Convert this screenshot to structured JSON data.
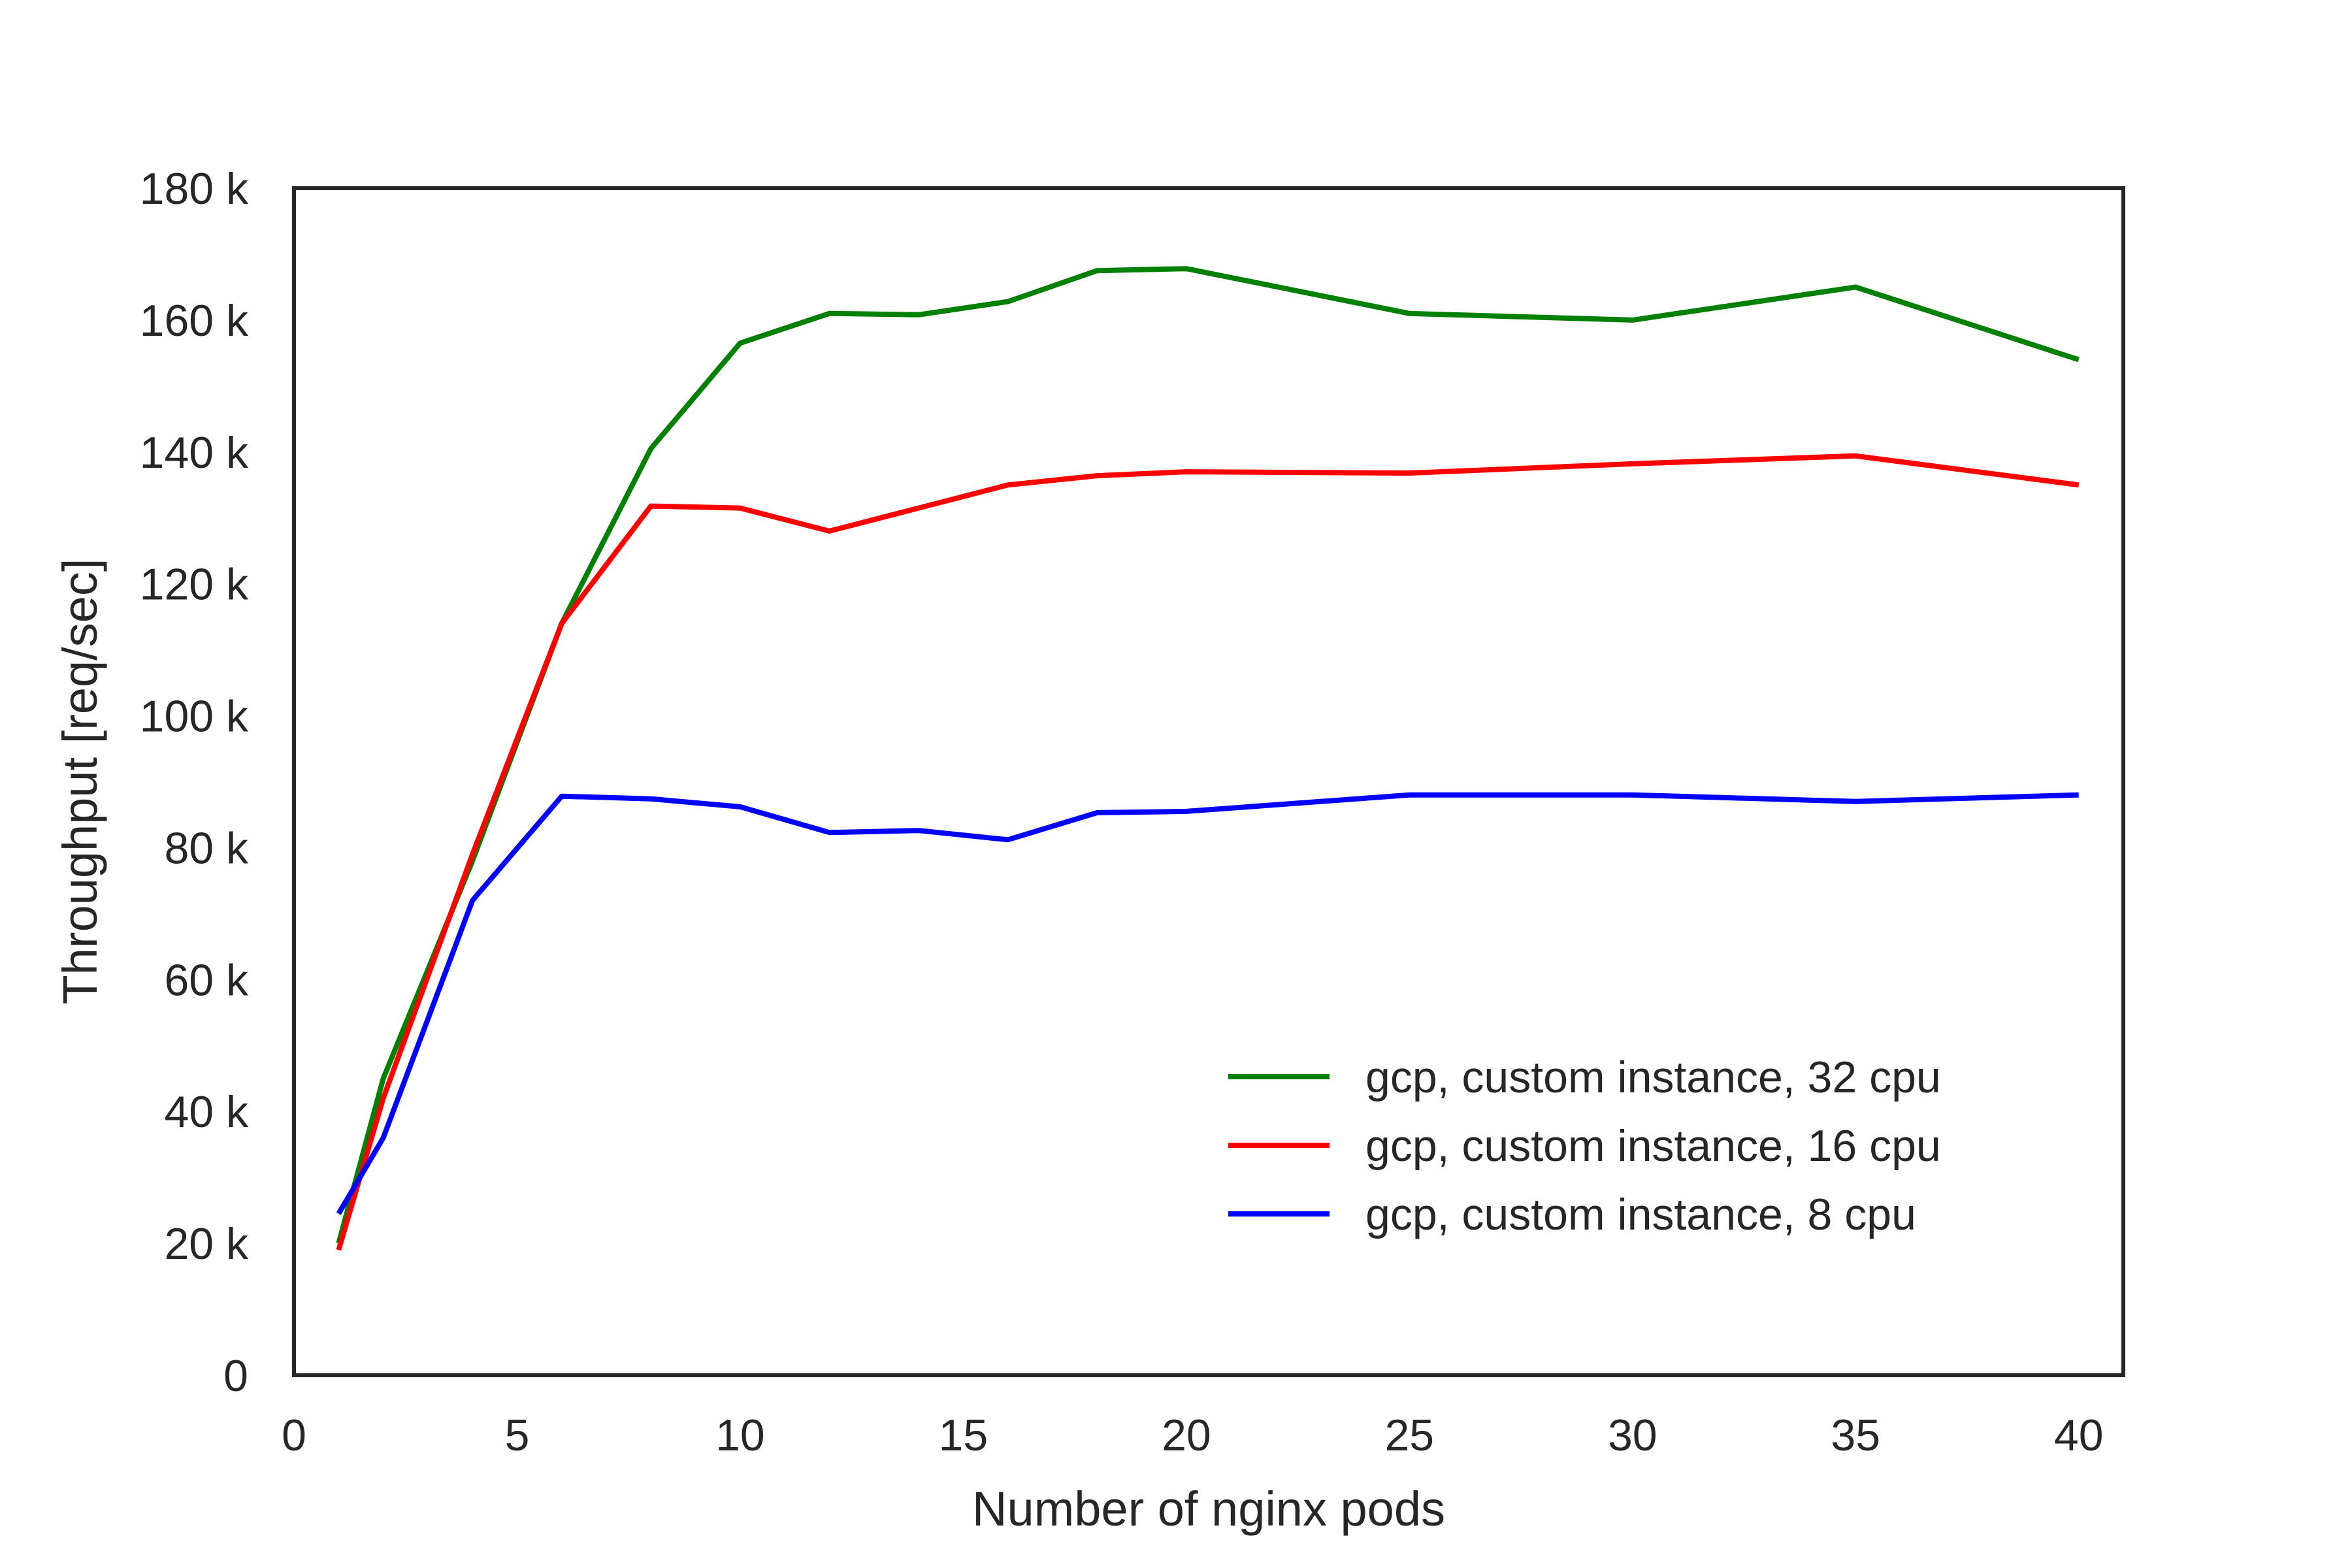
{
  "chart_data": {
    "type": "line",
    "title": "",
    "xlabel": "Number of nginx pods",
    "ylabel": "Throughput [req/sec]",
    "xlim": [
      0,
      41
    ],
    "ylim": [
      0,
      180000
    ],
    "xticks": [
      0,
      5,
      10,
      15,
      20,
      25,
      30,
      35,
      40
    ],
    "xtick_labels": [
      "0",
      "5",
      "10",
      "15",
      "20",
      "25",
      "30",
      "35",
      "40"
    ],
    "yticks": [
      0,
      20000,
      40000,
      60000,
      80000,
      100000,
      120000,
      140000,
      160000,
      180000
    ],
    "ytick_labels": [
      "0",
      "20 k",
      "40 k",
      "60 k",
      "80 k",
      "100 k",
      "120 k",
      "140 k",
      "160 k",
      "180 k"
    ],
    "grid": false,
    "legend_position": "lower-right",
    "x": [
      1,
      2,
      4,
      6,
      8,
      10,
      12,
      14,
      16,
      18,
      20,
      25,
      30,
      35,
      40
    ],
    "series": [
      {
        "name": "gcp, custom instance, 32 cpu",
        "color": "#008000",
        "values": [
          20000,
          45000,
          78000,
          114000,
          140500,
          156500,
          161000,
          160800,
          162800,
          167500,
          167800,
          161000,
          160000,
          165000,
          154000
        ]
      },
      {
        "name": "gcp, custom instance, 16 cpu",
        "color": "#ff0000",
        "values": [
          19000,
          42000,
          79000,
          114000,
          131800,
          131500,
          128000,
          131500,
          135000,
          136400,
          137000,
          136800,
          138200,
          139400,
          135000
        ]
      },
      {
        "name": "gcp, custom instance, 8 cpu",
        "color": "#0000ff",
        "values": [
          24500,
          36000,
          72000,
          87800,
          87400,
          86200,
          82300,
          82600,
          81200,
          85300,
          85500,
          88000,
          88000,
          87000,
          88000
        ]
      }
    ]
  }
}
